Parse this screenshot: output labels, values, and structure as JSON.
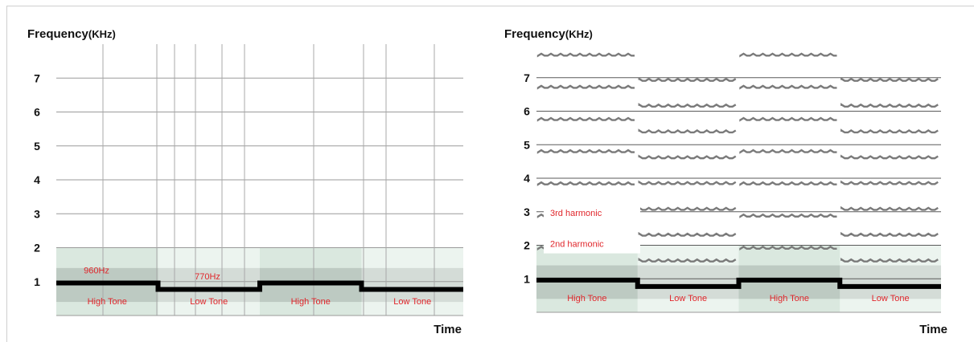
{
  "chart_data": [
    {
      "type": "spectrogram",
      "ylabel": "Frequency",
      "yunit": "(KHz)",
      "xlabel": "Time",
      "ylim": [
        0,
        8
      ],
      "yticks": [
        "1",
        "2",
        "3",
        "4",
        "5",
        "6",
        "7"
      ],
      "segments": [
        {
          "label": "High Tone",
          "freq_khz": 0.96
        },
        {
          "label": "Low Tone",
          "freq_khz": 0.77
        },
        {
          "label": "High Tone",
          "freq_khz": 0.96
        },
        {
          "label": "Low Tone",
          "freq_khz": 0.77
        }
      ],
      "annotations": [
        "960Hz",
        "770Hz"
      ],
      "harmonics_shown": false,
      "colors": {
        "tone": "#000000",
        "noise": "#bcd6c4",
        "annotation": "#e0262b"
      }
    },
    {
      "type": "spectrogram",
      "ylabel": "Frequency",
      "yunit": "(KHz)",
      "xlabel": "Time",
      "ylim": [
        0,
        8
      ],
      "yticks": [
        "1",
        "2",
        "3",
        "4",
        "5",
        "6",
        "7"
      ],
      "segments": [
        {
          "label": "High Tone",
          "freq_khz": 0.96
        },
        {
          "label": "Low Tone",
          "freq_khz": 0.77
        },
        {
          "label": "High Tone",
          "freq_khz": 0.96
        },
        {
          "label": "Low Tone",
          "freq_khz": 0.77
        }
      ],
      "annotations": [
        "3rd harmonic",
        "2nd harmonic"
      ],
      "harmonics_shown": true,
      "colors": {
        "tone": "#000000",
        "harmonic": "#7a7a7a",
        "noise": "#bcd6c4",
        "annotation": "#e0262b"
      }
    }
  ]
}
